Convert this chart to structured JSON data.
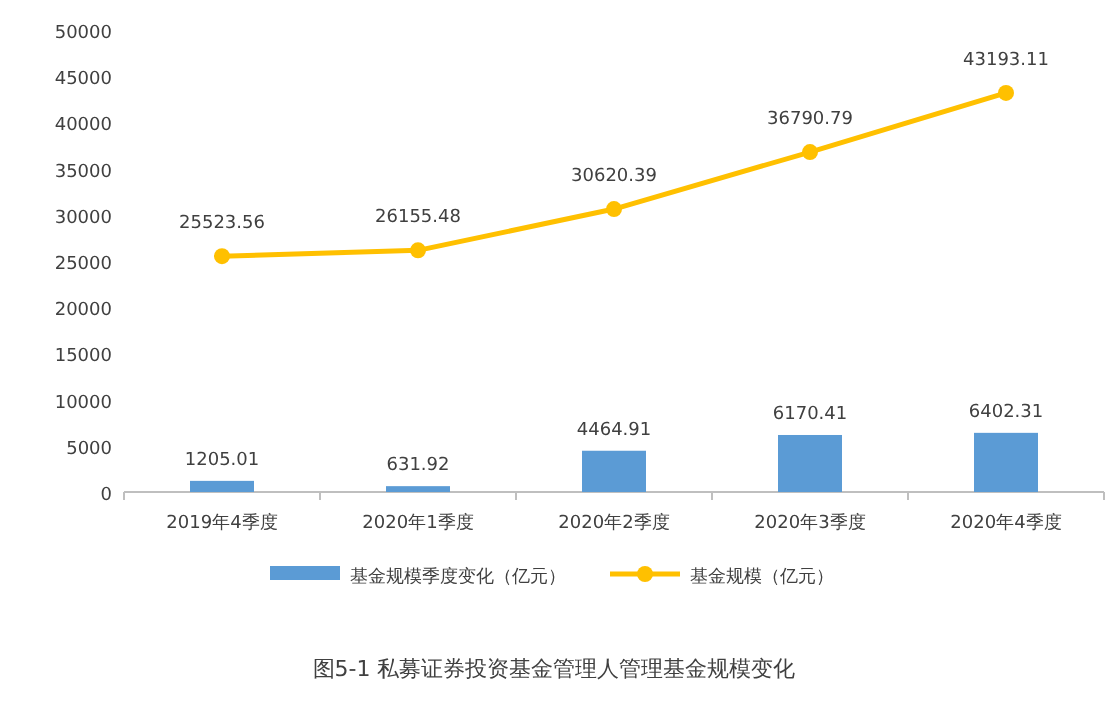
{
  "chart_data": {
    "type": "bar",
    "categories": [
      "2019年4季度",
      "2020年1季度",
      "2020年2季度",
      "2020年3季度",
      "2020年4季度"
    ],
    "series": [
      {
        "name": "基金规模季度变化（亿元）",
        "color": "#5b9bd5",
        "values": [
          1205.01,
          631.92,
          4464.91,
          6170.41,
          6402.31
        ]
      },
      {
        "name": "基金规模（亿元）",
        "type": "line",
        "color": "#ffc000",
        "marker": "circle",
        "values": [
          25523.56,
          26155.48,
          30620.39,
          36790.79,
          43193.11
        ]
      }
    ],
    "ylim": [
      0,
      50000
    ],
    "yticks": [
      0,
      5000,
      10000,
      15000,
      20000,
      25000,
      30000,
      35000,
      40000,
      45000,
      50000
    ],
    "data_labels": true,
    "legend": "bottom",
    "grid": false,
    "annotations": [
      "图5-1  私募证券投资基金管理人管理基金规模变化"
    ]
  }
}
